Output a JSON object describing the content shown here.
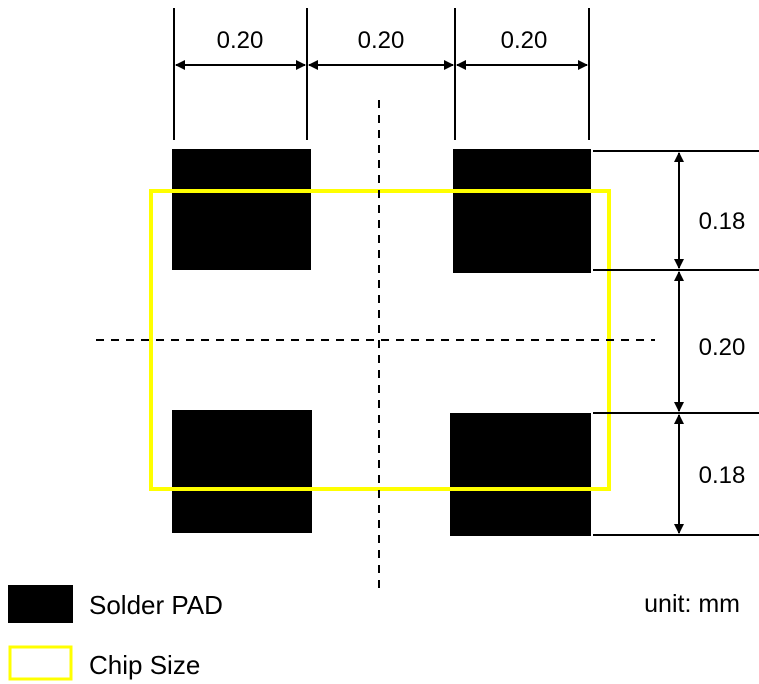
{
  "dimensions": {
    "top": [
      "0.20",
      "0.20",
      "0.20"
    ],
    "right": [
      "0.18",
      "0.20",
      "0.18"
    ]
  },
  "legend": {
    "solder_pad": "Solder PAD",
    "chip_size": "Chip Size"
  },
  "unit": "unit: mm",
  "colors": {
    "pad": "#000000",
    "chip_outline": "#ffff00",
    "lines": "#000000"
  }
}
